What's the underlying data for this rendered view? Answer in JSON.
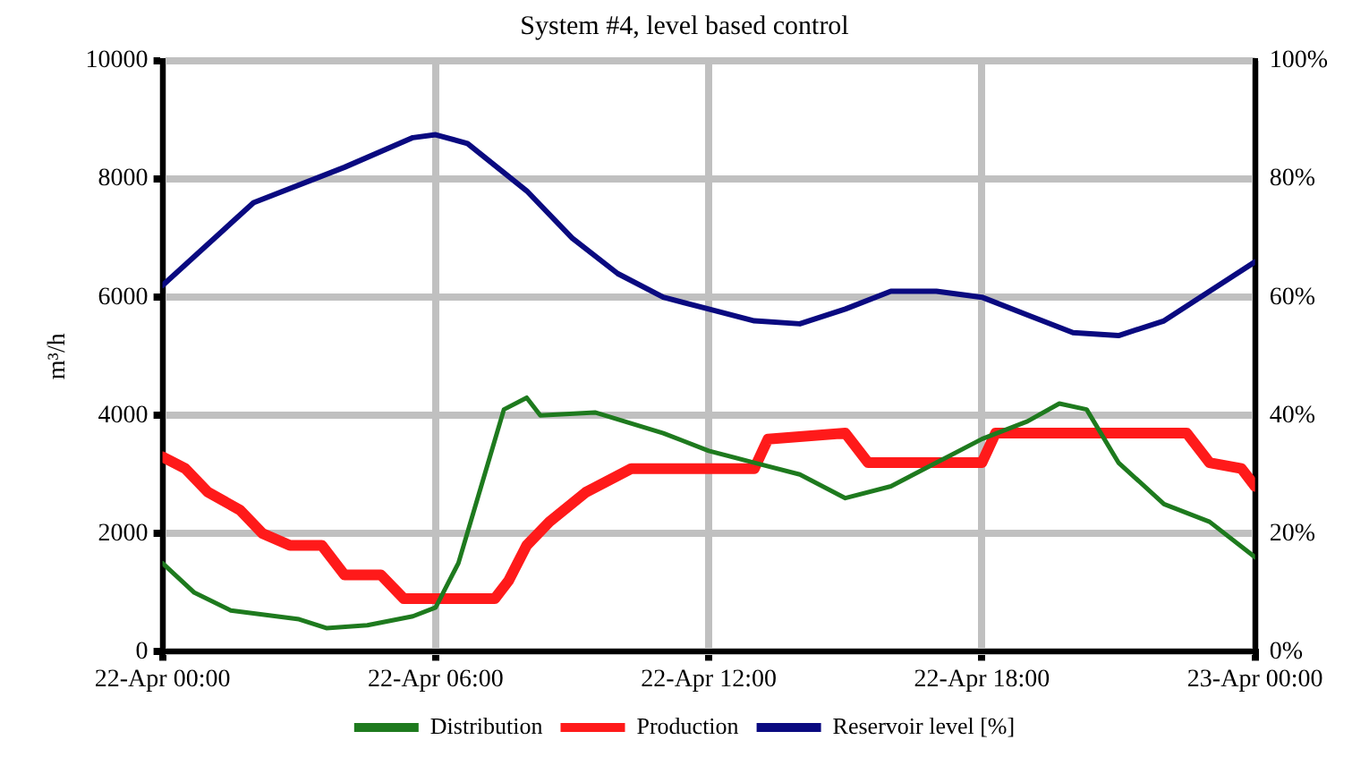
{
  "chart_data": {
    "type": "line",
    "title": "System #4, level based control",
    "ylabel": "m³/h",
    "xlim": [
      "--04-22T00:00",
      "--04-23T00:00"
    ],
    "xticks": [
      {
        "value": "--04-22T00:00",
        "label": "22-Apr 00:00"
      },
      {
        "value": "--04-22T06:00",
        "label": "22-Apr 06:00"
      },
      {
        "value": "--04-22T12:00",
        "label": "22-Apr 12:00"
      },
      {
        "value": "--04-22T18:00",
        "label": "22-Apr 18:00"
      },
      {
        "value": "--04-23T00:00",
        "label": "23-Apr 00:00"
      }
    ],
    "ylim": [
      0,
      10000
    ],
    "yticks": [
      0,
      2000,
      4000,
      6000,
      8000,
      10000
    ],
    "y2lim": [
      0,
      100
    ],
    "y2ticks": [
      {
        "value": 0,
        "label": "0%"
      },
      {
        "value": 20,
        "label": "20%"
      },
      {
        "value": 40,
        "label": "40%"
      },
      {
        "value": 60,
        "label": "60%"
      },
      {
        "value": 80,
        "label": "80%"
      },
      {
        "value": 100,
        "label": "100%"
      }
    ],
    "grid": true,
    "legend": "bottom",
    "marker": "none",
    "line_style": "solid",
    "series": [
      {
        "name": "Distribution",
        "color": "#1e7a1e",
        "x": [
          "--04-22T00:00",
          "--04-22T00:42",
          "--04-22T01:30",
          "--04-22T03:00",
          "--04-22T03:36",
          "--04-22T04:30",
          "--04-22T05:30",
          "--04-22T06:00",
          "--04-22T06:30",
          "--04-22T07:00",
          "--04-22T07:30",
          "--04-22T08:00",
          "--04-22T08:18",
          "--04-22T09:30",
          "--04-22T11:00",
          "--04-22T12:00",
          "--04-22T13:00",
          "--04-22T14:00",
          "--04-22T15:00",
          "--04-22T16:00",
          "--04-22T17:00",
          "--04-22T18:00",
          "--04-22T19:00",
          "--04-22T19:42",
          "--04-22T20:18",
          "--04-22T21:00",
          "--04-22T22:00",
          "--04-22T23:00",
          "--04-23T00:00"
        ],
        "values": [
          1500,
          1000,
          700,
          550,
          400,
          450,
          600,
          750,
          1500,
          2800,
          4100,
          4300,
          4000,
          4050,
          3700,
          3400,
          3200,
          3000,
          2600,
          2800,
          3200,
          3600,
          3900,
          4200,
          4100,
          3200,
          2500,
          2200,
          1600
        ]
      },
      {
        "name": "Production",
        "color": "#ff1a1a",
        "x": [
          "--04-22T00:00",
          "--04-22T00:30",
          "--04-22T01:00",
          "--04-22T01:42",
          "--04-22T02:12",
          "--04-22T02:48",
          "--04-22T03:30",
          "--04-22T04:00",
          "--04-22T04:48",
          "--04-22T05:18",
          "--04-22T07:18",
          "--04-22T07:36",
          "--04-22T08:00",
          "--04-22T08:30",
          "--04-22T09:18",
          "--04-22T10:18",
          "--04-22T13:00",
          "--04-22T13:18",
          "--04-22T15:00",
          "--04-22T15:30",
          "--04-22T18:00",
          "--04-22T18:18",
          "--04-22T22:30",
          "--04-22T23:00",
          "--04-22T23:42",
          "--04-23T00:00"
        ],
        "values": [
          3300,
          3100,
          2700,
          2400,
          2000,
          1800,
          1800,
          1300,
          1300,
          900,
          900,
          1200,
          1800,
          2200,
          2700,
          3100,
          3100,
          3600,
          3700,
          3200,
          3200,
          3700,
          3700,
          3200,
          3100,
          2800
        ]
      },
      {
        "name": "Reservoir level [%]",
        "color": "#0a0a80",
        "axis": "y2",
        "x": [
          "--04-22T00:00",
          "--04-22T02:00",
          "--04-22T04:00",
          "--04-22T05:30",
          "--04-22T06:00",
          "--04-22T06:42",
          "--04-22T08:00",
          "--04-22T09:00",
          "--04-22T10:00",
          "--04-22T11:00",
          "--04-22T12:00",
          "--04-22T13:00",
          "--04-22T14:00",
          "--04-22T15:00",
          "--04-22T16:00",
          "--04-22T17:00",
          "--04-22T18:00",
          "--04-22T19:00",
          "--04-22T20:00",
          "--04-22T21:00",
          "--04-22T22:00",
          "--04-22T23:00",
          "--04-23T00:00"
        ],
        "values": [
          62,
          76,
          82,
          87,
          87.5,
          86,
          78,
          70,
          64,
          60,
          58,
          56,
          55.5,
          58,
          61,
          61,
          60,
          57,
          54,
          53.5,
          56,
          61,
          66
        ]
      }
    ]
  }
}
